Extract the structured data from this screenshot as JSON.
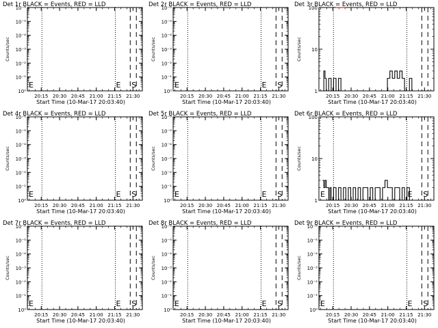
{
  "chart_data": [
    {
      "type": "line",
      "title": "Det 1r BLACK = Events, RED = LLD",
      "xlabel": "Start Time (10-Mar-17 20:03:40)",
      "ylabel": "Counts/sec",
      "scale": "log",
      "yticks": [
        "10⁰",
        "10⁻¹",
        "10⁻²",
        "10⁻³",
        "10⁻⁴",
        "10⁻⁵",
        "10⁻⁶"
      ],
      "xticks": [
        "20:15",
        "20:30",
        "20:45",
        "21:00",
        "21:15",
        "21:30"
      ],
      "markers": {
        "dotted": [
          "20:15",
          "21:15"
        ],
        "dashed": [
          "21:30",
          "21:35"
        ]
      },
      "labels": {
        "E": "E",
        "S": "S"
      },
      "series": []
    },
    {
      "type": "line",
      "title": "Det 2r BLACK = Events, RED = LLD",
      "xlabel": "Start Time (10-Mar-17 20:03:40)",
      "ylabel": "Counts/sec",
      "scale": "log",
      "yticks": [
        "10⁰",
        "10⁻¹",
        "10⁻²",
        "10⁻³",
        "10⁻⁴",
        "10⁻⁵",
        "10⁻⁶"
      ],
      "xticks": [
        "20:15",
        "20:30",
        "20:45",
        "21:00",
        "21:15",
        "21:30"
      ],
      "markers": {
        "dotted": [
          "20:15",
          "21:15"
        ],
        "dashed": [
          "21:30",
          "21:35"
        ]
      },
      "labels": {
        "E": "E",
        "S": "S"
      },
      "series": []
    },
    {
      "type": "line",
      "title": "Det 3r BLACK = Events, RED = LLD",
      "xlabel": "Start Time (10-Mar-17 20:03:40)",
      "ylabel": "Counts/sec",
      "scale": "log",
      "yticks": [
        "1",
        "10",
        "100"
      ],
      "xticks": [
        "20:15",
        "20:30",
        "20:45",
        "21:00",
        "21:15",
        "21:30"
      ],
      "markers": {
        "dotted": [
          "20:15",
          "21:15"
        ],
        "dashed": [
          "21:30",
          "21:35"
        ]
      },
      "labels": {},
      "series": [
        {
          "color": "#000000",
          "x_min": [
            3,
            4,
            5,
            6,
            8,
            10,
            12,
            14,
            16,
            18,
            20,
            22,
            24,
            26,
            30,
            34,
            38,
            42,
            46,
            50,
            54,
            56,
            58,
            60,
            62,
            64,
            66,
            68,
            70,
            72,
            74,
            76
          ],
          "y": [
            1,
            3,
            2,
            1,
            2,
            1,
            2,
            1,
            2,
            1,
            1,
            1,
            1,
            1,
            1,
            1,
            1,
            1,
            1,
            1,
            1,
            2,
            3,
            2,
            3,
            2,
            3,
            2,
            1,
            1,
            2,
            1
          ]
        },
        {
          "color": "#ff0000",
          "x_min": [
            14,
            16,
            18,
            20,
            22
          ],
          "y": [
            100,
            100,
            100,
            100,
            100
          ]
        }
      ]
    },
    {
      "type": "line",
      "title": "Det 4r BLACK = Events, RED = LLD",
      "xlabel": "Start Time (10-Mar-17 20:03:40)",
      "ylabel": "Counts/sec",
      "scale": "log",
      "yticks": [
        "10⁰",
        "10⁻¹",
        "10⁻²",
        "10⁻³",
        "10⁻⁴",
        "10⁻⁵",
        "10⁻⁶"
      ],
      "xticks": [
        "20:15",
        "20:30",
        "20:45",
        "21:00",
        "21:15",
        "21:30"
      ],
      "markers": {
        "dotted": [
          "20:15",
          "21:15"
        ],
        "dashed": [
          "21:30",
          "21:35"
        ]
      },
      "labels": {
        "E": "E",
        "S": "S"
      },
      "series": []
    },
    {
      "type": "line",
      "title": "Det 5r BLACK = Events, RED = LLD",
      "xlabel": "Start Time (10-Mar-17 20:03:40)",
      "ylabel": "Counts/sec",
      "scale": "log",
      "yticks": [
        "10⁰",
        "10⁻¹",
        "10⁻²",
        "10⁻³",
        "10⁻⁴",
        "10⁻⁵",
        "10⁻⁶"
      ],
      "xticks": [
        "20:15",
        "20:30",
        "20:45",
        "21:00",
        "21:15",
        "21:30"
      ],
      "markers": {
        "dotted": [
          "20:15",
          "21:15"
        ],
        "dashed": [
          "21:30",
          "21:35"
        ]
      },
      "labels": {
        "E": "E",
        "S": "S"
      },
      "series": []
    },
    {
      "type": "line",
      "title": "Det 6r BLACK = Events, RED = LLD",
      "xlabel": "Start Time (10-Mar-17 20:03:40)",
      "ylabel": "Counts/sec",
      "scale": "log",
      "yticks": [
        "1",
        "10",
        "100"
      ],
      "xticks": [
        "20:15",
        "20:30",
        "20:45",
        "21:00",
        "21:15",
        "21:30"
      ],
      "markers": {
        "dotted": [
          "20:15",
          "21:15"
        ],
        "dashed": [
          "21:30",
          "21:35"
        ]
      },
      "labels": {
        "E": "E",
        "S": "S"
      },
      "series": [
        {
          "color": "#000000",
          "x_min": [
            3,
            4,
            5,
            6,
            7,
            8,
            9,
            10,
            12,
            14,
            16,
            18,
            20,
            22,
            24,
            26,
            28,
            30,
            32,
            34,
            36,
            38,
            40,
            42,
            44,
            46,
            48,
            50,
            52,
            54,
            56,
            58,
            60,
            62,
            64,
            66,
            68,
            70,
            72,
            74
          ],
          "y": [
            3,
            2,
            3,
            2,
            2,
            1,
            2,
            1,
            2,
            1,
            2,
            1,
            2,
            1,
            2,
            1,
            2,
            1,
            2,
            1,
            2,
            2,
            1,
            2,
            1,
            2,
            2,
            1,
            2,
            3,
            2,
            2,
            1,
            2,
            2,
            1,
            2,
            1,
            2,
            1
          ]
        }
      ]
    },
    {
      "type": "line",
      "title": "Det 7r BLACK = Events, RED = LLD",
      "xlabel": "Start Time (10-Mar-17 20:03:40)",
      "ylabel": "Counts/sec",
      "scale": "log",
      "yticks": [
        "10⁰",
        "10⁻¹",
        "10⁻²",
        "10⁻³",
        "10⁻⁴",
        "10⁻⁵",
        "10⁻⁶"
      ],
      "xticks": [
        "20:15",
        "20:30",
        "20:45",
        "21:00",
        "21:15",
        "21:30"
      ],
      "markers": {
        "dotted": [
          "20:15",
          "21:15"
        ],
        "dashed": [
          "21:30",
          "21:35"
        ]
      },
      "labels": {
        "E": "E",
        "S": "S"
      },
      "series": []
    },
    {
      "type": "line",
      "title": "Det 8r BLACK = Events, RED = LLD",
      "xlabel": "Start Time (10-Mar-17 20:03:40)",
      "ylabel": "Counts/sec",
      "scale": "log",
      "yticks": [
        "10⁰",
        "10⁻¹",
        "10⁻²",
        "10⁻³",
        "10⁻⁴",
        "10⁻⁵",
        "10⁻⁶"
      ],
      "xticks": [
        "20:15",
        "20:30",
        "20:45",
        "21:00",
        "21:15",
        "21:30"
      ],
      "markers": {
        "dotted": [
          "20:15",
          "21:15"
        ],
        "dashed": [
          "21:30",
          "21:35"
        ]
      },
      "labels": {
        "E": "E",
        "S": "S"
      },
      "series": []
    },
    {
      "type": "line",
      "title": "Det 9r BLACK = Events, RED = LLD",
      "xlabel": "Start Time (10-Mar-17 20:03:40)",
      "ylabel": "Counts/sec",
      "scale": "log",
      "yticks": [
        "10⁰",
        "10⁻¹",
        "10⁻²",
        "10⁻³",
        "10⁻⁴",
        "10⁻⁵",
        "10⁻⁶"
      ],
      "xticks": [
        "20:15",
        "20:30",
        "20:45",
        "21:00",
        "21:15",
        "21:30"
      ],
      "markers": {
        "dotted": [
          "20:15",
          "21:15"
        ],
        "dashed": [
          "21:30",
          "21:35"
        ]
      },
      "labels": {
        "E": "E",
        "S": "S"
      },
      "series": []
    }
  ]
}
